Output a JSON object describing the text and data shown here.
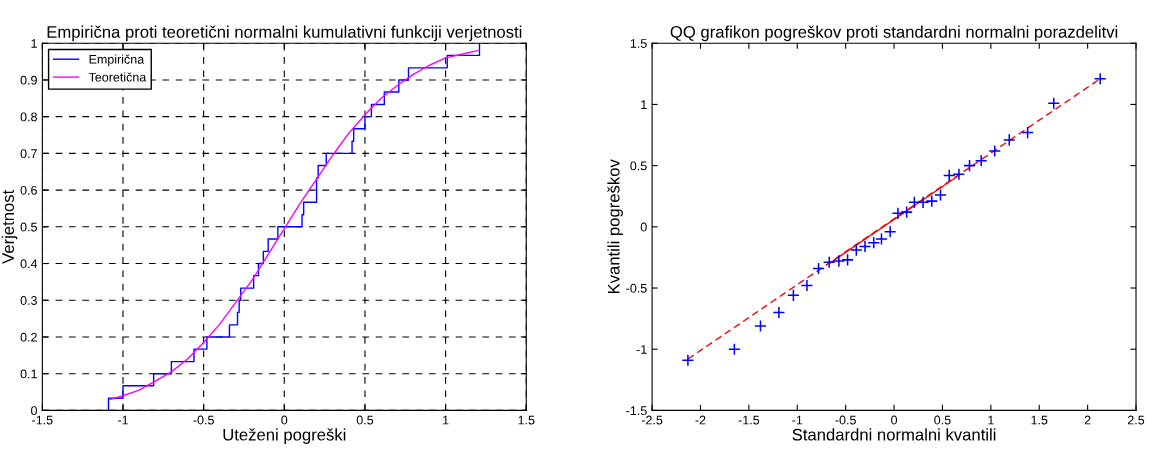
{
  "chart_data": [
    {
      "type": "step",
      "title": "Empirična proti teoretični normalni kumulativni funkciji verjetnosti",
      "xlabel": "Uteženi pogreški",
      "ylabel": "Verjetnost",
      "xlim": [
        -1.5,
        1.5
      ],
      "xticks": [
        -1.5,
        -1,
        -0.5,
        0,
        0.5,
        1,
        1.5
      ],
      "ylim": [
        0,
        1
      ],
      "yticks": [
        0,
        0.1,
        0.2,
        0.3,
        0.4,
        0.5,
        0.6,
        0.7,
        0.8,
        0.9,
        1
      ],
      "grid": true,
      "legend": "top left",
      "line_style": "solid",
      "series": [
        {
          "name": "Empirična",
          "color": "#0000ff",
          "x": [
            -1.09,
            -1.09,
            -1.0,
            -0.81,
            -0.7,
            -0.56,
            -0.48,
            -0.34,
            -0.29,
            -0.28,
            -0.27,
            -0.19,
            -0.16,
            -0.13,
            -0.1,
            -0.04,
            0.11,
            0.12,
            0.2,
            0.2,
            0.21,
            0.26,
            0.42,
            0.43,
            0.5,
            0.54,
            0.62,
            0.71,
            0.77,
            1.01,
            1.21
          ],
          "values": [
            0,
            0.033,
            0.067,
            0.1,
            0.133,
            0.167,
            0.2,
            0.233,
            0.267,
            0.3,
            0.333,
            0.367,
            0.4,
            0.433,
            0.467,
            0.5,
            0.533,
            0.567,
            0.6,
            0.633,
            0.667,
            0.7,
            0.733,
            0.767,
            0.8,
            0.833,
            0.867,
            0.9,
            0.933,
            0.967,
            1
          ]
        },
        {
          "name": "Teoretična",
          "type": "line",
          "color": "#ff00ff",
          "x": [
            -1.08,
            -1.0,
            -0.9,
            -0.8,
            -0.7,
            -0.6,
            -0.5,
            -0.4,
            -0.3,
            -0.2,
            -0.1,
            0,
            0.1,
            0.2,
            0.3,
            0.4,
            0.5,
            0.6,
            0.7,
            0.8,
            0.9,
            1.0,
            1.1,
            1.2
          ],
          "values": [
            0.03,
            0.04,
            0.055,
            0.08,
            0.105,
            0.14,
            0.185,
            0.235,
            0.295,
            0.355,
            0.425,
            0.495,
            0.565,
            0.63,
            0.695,
            0.755,
            0.805,
            0.85,
            0.885,
            0.915,
            0.94,
            0.96,
            0.97,
            0.98
          ]
        }
      ]
    },
    {
      "type": "scatter",
      "title": "QQ grafikon pogreškov proti standardni normalni porazdelitvi",
      "xlabel": "Standardni normalni kvantili",
      "ylabel": "Kvantili pogreškov",
      "xlim": [
        -2.5,
        2.5
      ],
      "xticks": [
        -2.5,
        -2,
        -1.5,
        -1,
        -0.5,
        0,
        0.5,
        1,
        1.5,
        2,
        2.5
      ],
      "ylim": [
        -1.5,
        1.5
      ],
      "yticks": [
        -1.5,
        -1,
        -0.5,
        0,
        0.5,
        1,
        1.5
      ],
      "series": [
        {
          "type": "line",
          "color": "#ff0000",
          "line_style": "dashed",
          "x": [
            -2.13,
            2.13
          ],
          "values": [
            -1.08,
            1.21
          ]
        },
        {
          "type": "line",
          "color": "#ff0000",
          "line_style": "solid",
          "x": [
            -0.67,
            0.67
          ],
          "values": [
            -0.3,
            0.42
          ]
        },
        {
          "color": "#0000ff",
          "marker": "cross",
          "x": [
            -2.13,
            -1.65,
            -1.38,
            -1.19,
            -1.04,
            -0.9,
            -0.78,
            -0.67,
            -0.57,
            -0.48,
            -0.39,
            -0.3,
            -0.21,
            -0.13,
            -0.04,
            0.04,
            0.13,
            0.21,
            0.3,
            0.39,
            0.48,
            0.57,
            0.67,
            0.78,
            0.9,
            1.04,
            1.19,
            1.38,
            1.65,
            2.13
          ],
          "values": [
            -1.09,
            -1.0,
            -0.81,
            -0.7,
            -0.56,
            -0.48,
            -0.34,
            -0.29,
            -0.28,
            -0.27,
            -0.19,
            -0.16,
            -0.13,
            -0.1,
            -0.04,
            0.11,
            0.12,
            0.2,
            0.2,
            0.21,
            0.26,
            0.42,
            0.43,
            0.5,
            0.54,
            0.62,
            0.71,
            0.77,
            1.01,
            1.21
          ]
        }
      ]
    }
  ]
}
